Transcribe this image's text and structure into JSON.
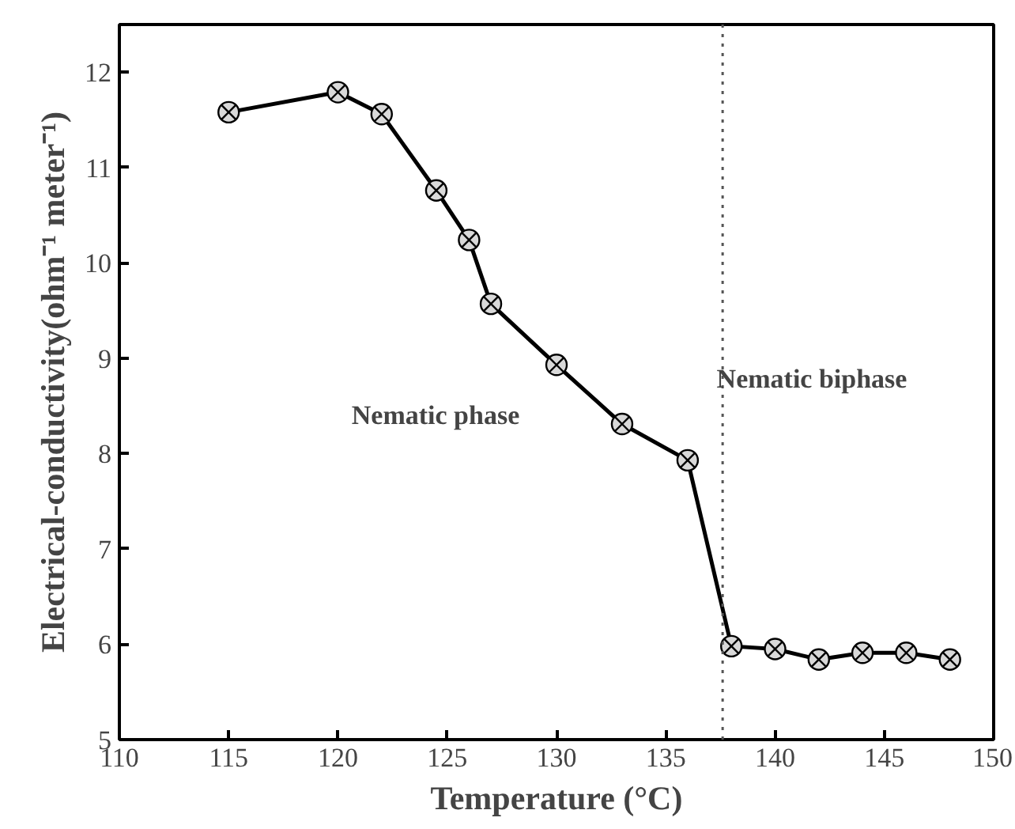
{
  "chart_data": {
    "type": "line",
    "xlabel": "Temperature (°C)",
    "ylabel": "Electrical-conductivity(ohm⁻¹ meter⁻¹)",
    "x": [
      115,
      120,
      122,
      124.5,
      126,
      127,
      130,
      133,
      136,
      138,
      140,
      142,
      144,
      146,
      148
    ],
    "series": [
      {
        "color": "#000000",
        "values": [
          11.58,
          11.79,
          11.56,
          10.76,
          10.24,
          9.57,
          8.93,
          8.31,
          7.93,
          5.98,
          5.95,
          5.84,
          5.91,
          5.91,
          5.84
        ]
      }
    ],
    "xlim": [
      110,
      150
    ],
    "xticks": [
      110,
      115,
      120,
      125,
      130,
      135,
      140,
      145,
      150
    ],
    "ylim": [
      5,
      12.5
    ],
    "yticks": [
      5,
      6,
      7,
      8,
      9,
      10,
      11,
      12
    ],
    "marker": "cross",
    "line_style": "solid",
    "grid": false,
    "ref_lines": [
      {
        "axis": "x",
        "value": 137.6,
        "line_style": "dotted",
        "color": "#555555"
      }
    ],
    "annotations": [
      "Nematic phase",
      "Nematic biphase"
    ]
  }
}
